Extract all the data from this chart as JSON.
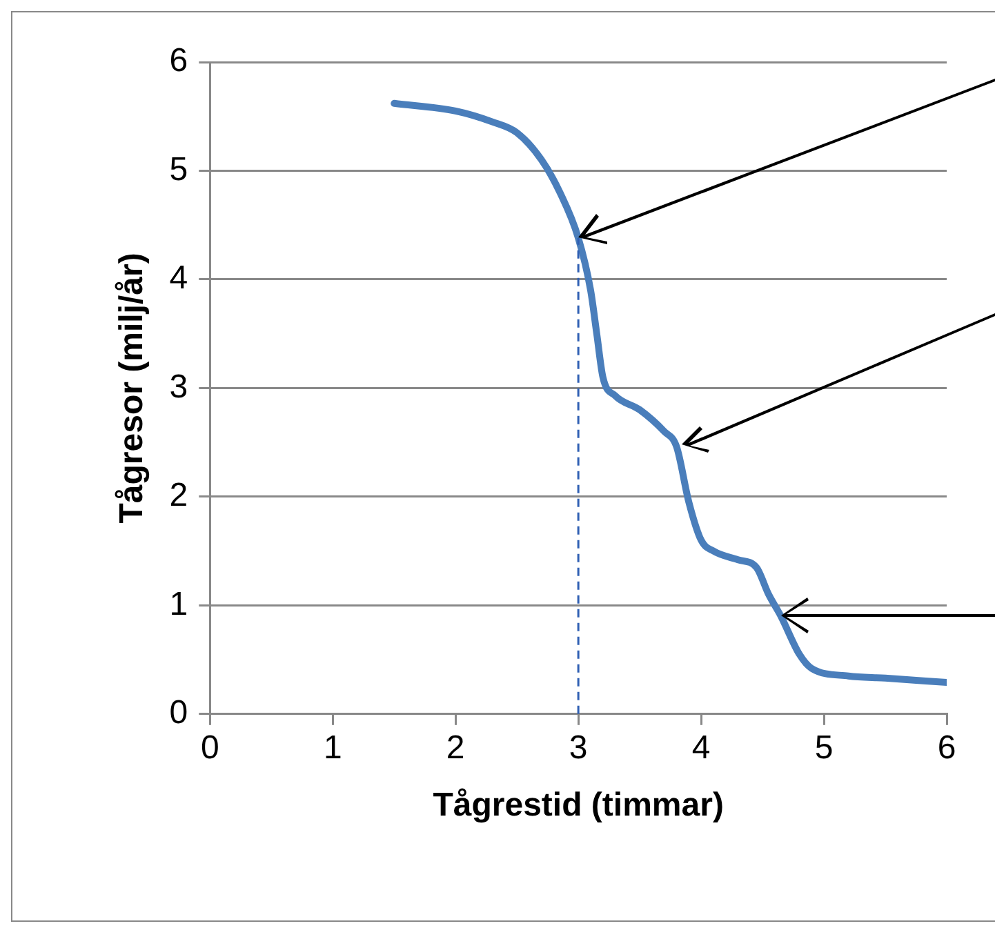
{
  "chart_data": {
    "type": "line",
    "xlabel": "Tågrestid (timmar)",
    "ylabel": "Tågresor (milj/år)",
    "xlim": [
      0,
      6
    ],
    "xticks": [
      0,
      1,
      2,
      3,
      4,
      5,
      6
    ],
    "ylim": [
      0,
      6
    ],
    "yticks": [
      0,
      1,
      2,
      3,
      4,
      5,
      6
    ],
    "grid": "y",
    "marker": "none",
    "line_style": "solid",
    "series": [
      {
        "color": "#4a7ebb",
        "x": [
          1.5,
          2,
          2.3,
          2.5,
          2.7,
          2.85,
          3,
          3.1,
          3.15,
          3.2,
          3.3,
          3.5,
          3.7,
          3.8,
          3.9,
          4,
          4.1,
          4.3,
          4.45,
          4.55,
          4.65,
          4.8,
          4.9,
          5.2,
          5.5,
          6
        ],
        "values": [
          5.62,
          5.55,
          5.45,
          5.35,
          5.1,
          4.8,
          4.38,
          3.9,
          3.5,
          3.1,
          2.93,
          2.8,
          2.6,
          2.46,
          1.95,
          1.6,
          1.5,
          1.42,
          1.35,
          1.1,
          0.9,
          0.55,
          0.42,
          0.35,
          0.33,
          0.29
        ]
      }
    ],
    "ref_lines": [
      {
        "axis": "x",
        "value": 3,
        "color": "#2f5fb3",
        "line_style": "dashed"
      }
    ]
  }
}
